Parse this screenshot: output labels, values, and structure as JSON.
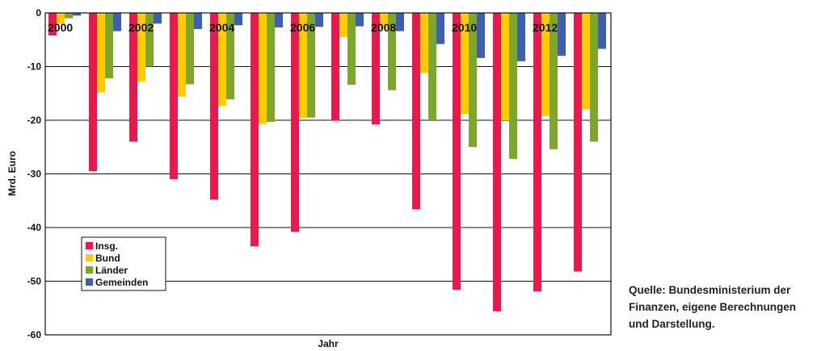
{
  "chart_data": {
    "type": "bar",
    "xlabel": "Jahr",
    "ylabel": "Mrd. Euro",
    "ylim": [
      -60,
      0
    ],
    "yticks": [
      0,
      -10,
      -20,
      -30,
      -40,
      -50,
      -60
    ],
    "categories": [
      "2000",
      "2001",
      "2002",
      "2003",
      "2004",
      "2005",
      "2006",
      "2007",
      "2008",
      "2009",
      "2010",
      "2011",
      "2012",
      "2013"
    ],
    "category_labels": [
      "2000",
      "",
      "2002",
      "",
      "2004",
      "",
      "2006",
      "",
      "2008",
      "",
      "2010",
      "",
      "2012",
      ""
    ],
    "grid": true,
    "legend_position": "bottom-left",
    "series": [
      {
        "name": "Insg.",
        "color": "#e8194c",
        "values": [
          -4.2,
          -29.5,
          -24.0,
          -31.0,
          -34.8,
          -43.5,
          -40.8,
          -20.1,
          -20.8,
          -36.6,
          -51.6,
          -55.6,
          -51.9,
          -48.2
        ]
      },
      {
        "name": "Bund",
        "color": "#ffcc00",
        "values": [
          -2.0,
          -14.8,
          -12.8,
          -15.6,
          -17.3,
          -20.7,
          -19.6,
          -4.5,
          -3.0,
          -11.2,
          -18.8,
          -20.0,
          -19.2,
          -18.0
        ]
      },
      {
        "name": "Länder",
        "color": "#7ca72c",
        "values": [
          -1.0,
          -12.2,
          -10.0,
          -13.3,
          -16.1,
          -20.3,
          -19.5,
          -13.4,
          -14.4,
          -20.0,
          -25.0,
          -27.2,
          -25.4,
          -24.0
        ]
      },
      {
        "name": "Gemeinden",
        "color": "#3c5fb2",
        "values": [
          -0.5,
          -3.4,
          -2.0,
          -3.0,
          -2.3,
          -2.7,
          -2.6,
          -2.5,
          -3.4,
          -5.8,
          -8.4,
          -9.0,
          -8.0,
          -6.7
        ]
      }
    ]
  },
  "source_note": {
    "line1": "Quelle: Bundesministerium der",
    "line2": "Finanzen, eigene Berechnungen",
    "line3": "und Darstellung."
  }
}
